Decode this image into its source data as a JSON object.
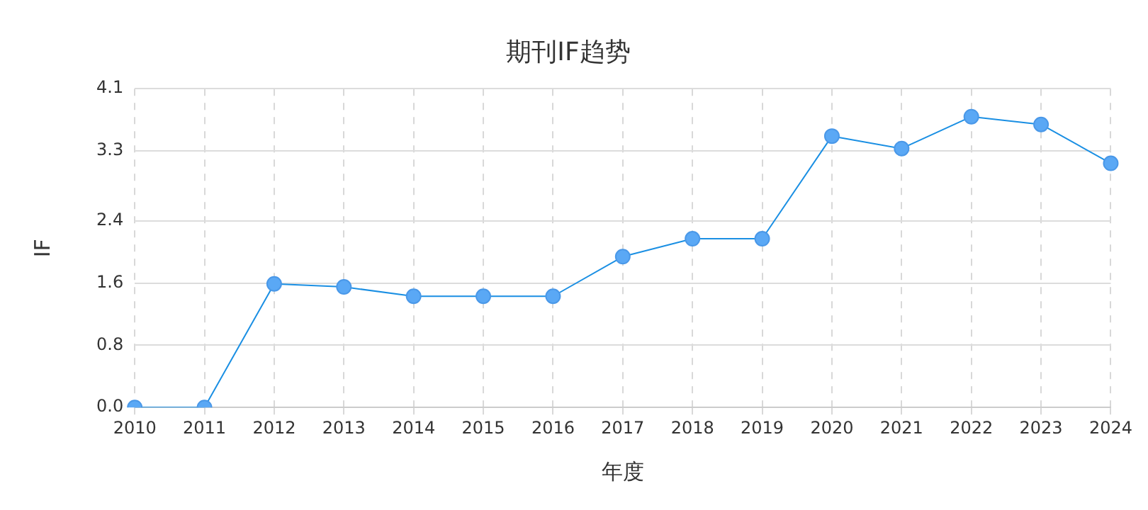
{
  "chart_data": {
    "type": "line",
    "title": "期刊IF趋势",
    "xlabel": "年度",
    "ylabel": "IF",
    "categories": [
      "2010",
      "2011",
      "2012",
      "2013",
      "2014",
      "2015",
      "2016",
      "2017",
      "2018",
      "2019",
      "2020",
      "2021",
      "2022",
      "2023",
      "2024"
    ],
    "series": [
      {
        "color": "#1a8fe3",
        "values": [
          0,
          0,
          1.59,
          1.55,
          1.43,
          1.43,
          1.43,
          1.94,
          2.17,
          2.17,
          3.49,
          3.33,
          3.74,
          3.64,
          3.14
        ]
      }
    ],
    "ylim": [
      0,
      4.1
    ],
    "yticks": [
      {
        "value": 0,
        "label": "0.0"
      },
      {
        "value": 0.8,
        "label": "0.8"
      },
      {
        "value": 1.6,
        "label": "1.6"
      },
      {
        "value": 2.4,
        "label": "2.4"
      },
      {
        "value": 3.3,
        "label": "3.3"
      },
      {
        "value": 4.1,
        "label": "4.1"
      }
    ],
    "grid": true,
    "marker": "circle",
    "line_style": "solid",
    "legend": false
  }
}
